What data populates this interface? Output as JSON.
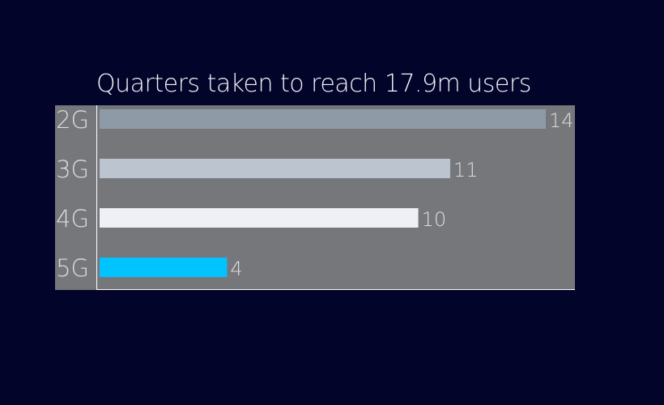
{
  "chart_data": {
    "type": "bar",
    "orientation": "horizontal",
    "title": "Quarters taken to reach 17.9m users",
    "categories": [
      "2G",
      "3G",
      "4G",
      "5G"
    ],
    "values": [
      14,
      11,
      10,
      4
    ],
    "bar_colors": [
      "#8e9ba6",
      "#bcc5cf",
      "#eef0f6",
      "#00c3ff"
    ],
    "value_labels": [
      "14",
      "11",
      "10",
      "4"
    ],
    "xlabel": "",
    "ylabel": "",
    "xlim": [
      0,
      14
    ],
    "grid": false,
    "legend": "none"
  },
  "colors": {
    "background": "#03042a",
    "plot_area": "#76777b",
    "axis_line": "#ffffff",
    "text": "#f2f3f7",
    "label_text": "#dcdde2"
  }
}
